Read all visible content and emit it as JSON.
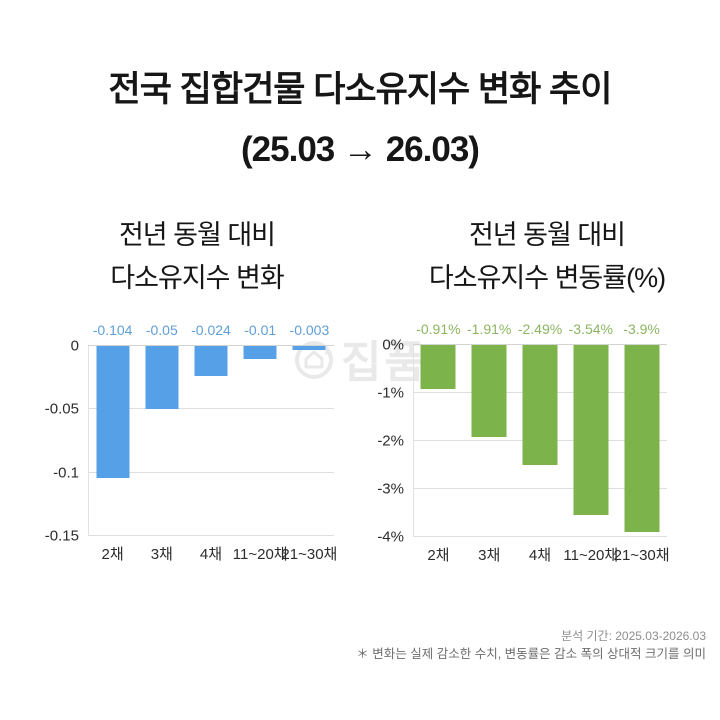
{
  "title": {
    "line1": "전국 집합건물 다소유지수 변화 추이",
    "line2": "(25.03 → 26.03)"
  },
  "watermark": {
    "text": "집품"
  },
  "footer": {
    "period": "분석 기간: 2025.03-2026.03",
    "note": "＊ 변화는 실제 감소한 수치, 변동률은 감소 폭의 상대적 크기를 의미"
  },
  "colors": {
    "blue": "#56a0e8",
    "blue_label": "#5f9fd9",
    "green": "#7cb34a",
    "green_label": "#8cb562",
    "grid": "#dedede",
    "axis_text": "#2d2d2d",
    "footer_text": "#8e8e8e",
    "watermark": "#e9e9e9"
  },
  "chart_data": [
    {
      "type": "bar",
      "title_lines": [
        "전년 동월 대비",
        "다소유지수 변화"
      ],
      "categories": [
        "2채",
        "3채",
        "4채",
        "11~20채",
        "21~30채"
      ],
      "values": [
        -0.104,
        -0.05,
        -0.024,
        -0.01,
        -0.003
      ],
      "labels": [
        "-0.104",
        "-0.05",
        "-0.024",
        "-0.01",
        "-0.003"
      ],
      "yticks": [
        0,
        -0.05,
        -0.1,
        -0.15
      ],
      "ytick_labels": [
        "0",
        "-0.05",
        "-0.1",
        "-0.15"
      ],
      "ylim": [
        -0.15,
        0
      ],
      "xlabel": "",
      "ylabel": "",
      "grid": true,
      "legend": "none",
      "bar_color_key": "blue",
      "label_color_key": "blue_label"
    },
    {
      "type": "bar",
      "title_lines": [
        "전년 동월 대비",
        "다소유지수 변동률(%)"
      ],
      "categories": [
        "2채",
        "3채",
        "4채",
        "11~20채",
        "21~30채"
      ],
      "values": [
        -0.91,
        -1.91,
        -2.49,
        -3.54,
        -3.9
      ],
      "labels": [
        "-0.91%",
        "-1.91%",
        "-2.49%",
        "-3.54%",
        "-3.9%"
      ],
      "yticks": [
        0,
        -1,
        -2,
        -3,
        -4
      ],
      "ytick_labels": [
        "0%",
        "-1%",
        "-2%",
        "-3%",
        "-4%"
      ],
      "ylim": [
        -4,
        0
      ],
      "xlabel": "",
      "ylabel": "",
      "grid": true,
      "legend": "none",
      "bar_color_key": "green",
      "label_color_key": "green_label"
    }
  ]
}
